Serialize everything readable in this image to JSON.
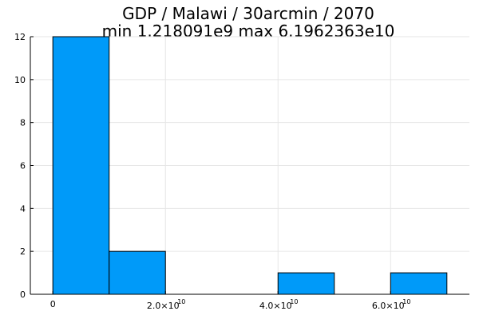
{
  "chart_data": {
    "type": "bar",
    "title": "GDP / Malawi / 30arcmin / 2070",
    "subtitle": "min 1.218091e9  max 6.1962363e10",
    "xlabel": "",
    "ylabel": "",
    "bins": [
      {
        "x0": 0,
        "x1": 10000000000,
        "count": 12
      },
      {
        "x0": 10000000000,
        "x1": 20000000000,
        "count": 2
      },
      {
        "x0": 20000000000,
        "x1": 30000000000,
        "count": 0
      },
      {
        "x0": 30000000000,
        "x1": 40000000000,
        "count": 0
      },
      {
        "x0": 40000000000,
        "x1": 50000000000,
        "count": 1
      },
      {
        "x0": 50000000000,
        "x1": 60000000000,
        "count": 0
      },
      {
        "x0": 60000000000,
        "x1": 70000000000,
        "count": 1
      }
    ],
    "xlim": [
      -4000000000,
      74000000000
    ],
    "ylim": [
      0,
      12
    ],
    "x_ticks": [
      {
        "value": 0,
        "mantissa": "0",
        "exponent": ""
      },
      {
        "value": 20000000000,
        "mantissa": "2.0×10",
        "exponent": "10"
      },
      {
        "value": 40000000000,
        "mantissa": "4.0×10",
        "exponent": "10"
      },
      {
        "value": 60000000000,
        "mantissa": "6.0×10",
        "exponent": "10"
      }
    ],
    "y_ticks": [
      {
        "value": 0,
        "label": "0"
      },
      {
        "value": 2,
        "label": "2"
      },
      {
        "value": 4,
        "label": "4"
      },
      {
        "value": 6,
        "label": "6"
      },
      {
        "value": 8,
        "label": "8"
      },
      {
        "value": 10,
        "label": "10"
      },
      {
        "value": 12,
        "label": "12"
      }
    ],
    "bar_color": "#009af9",
    "grid": true,
    "legend": "none"
  }
}
